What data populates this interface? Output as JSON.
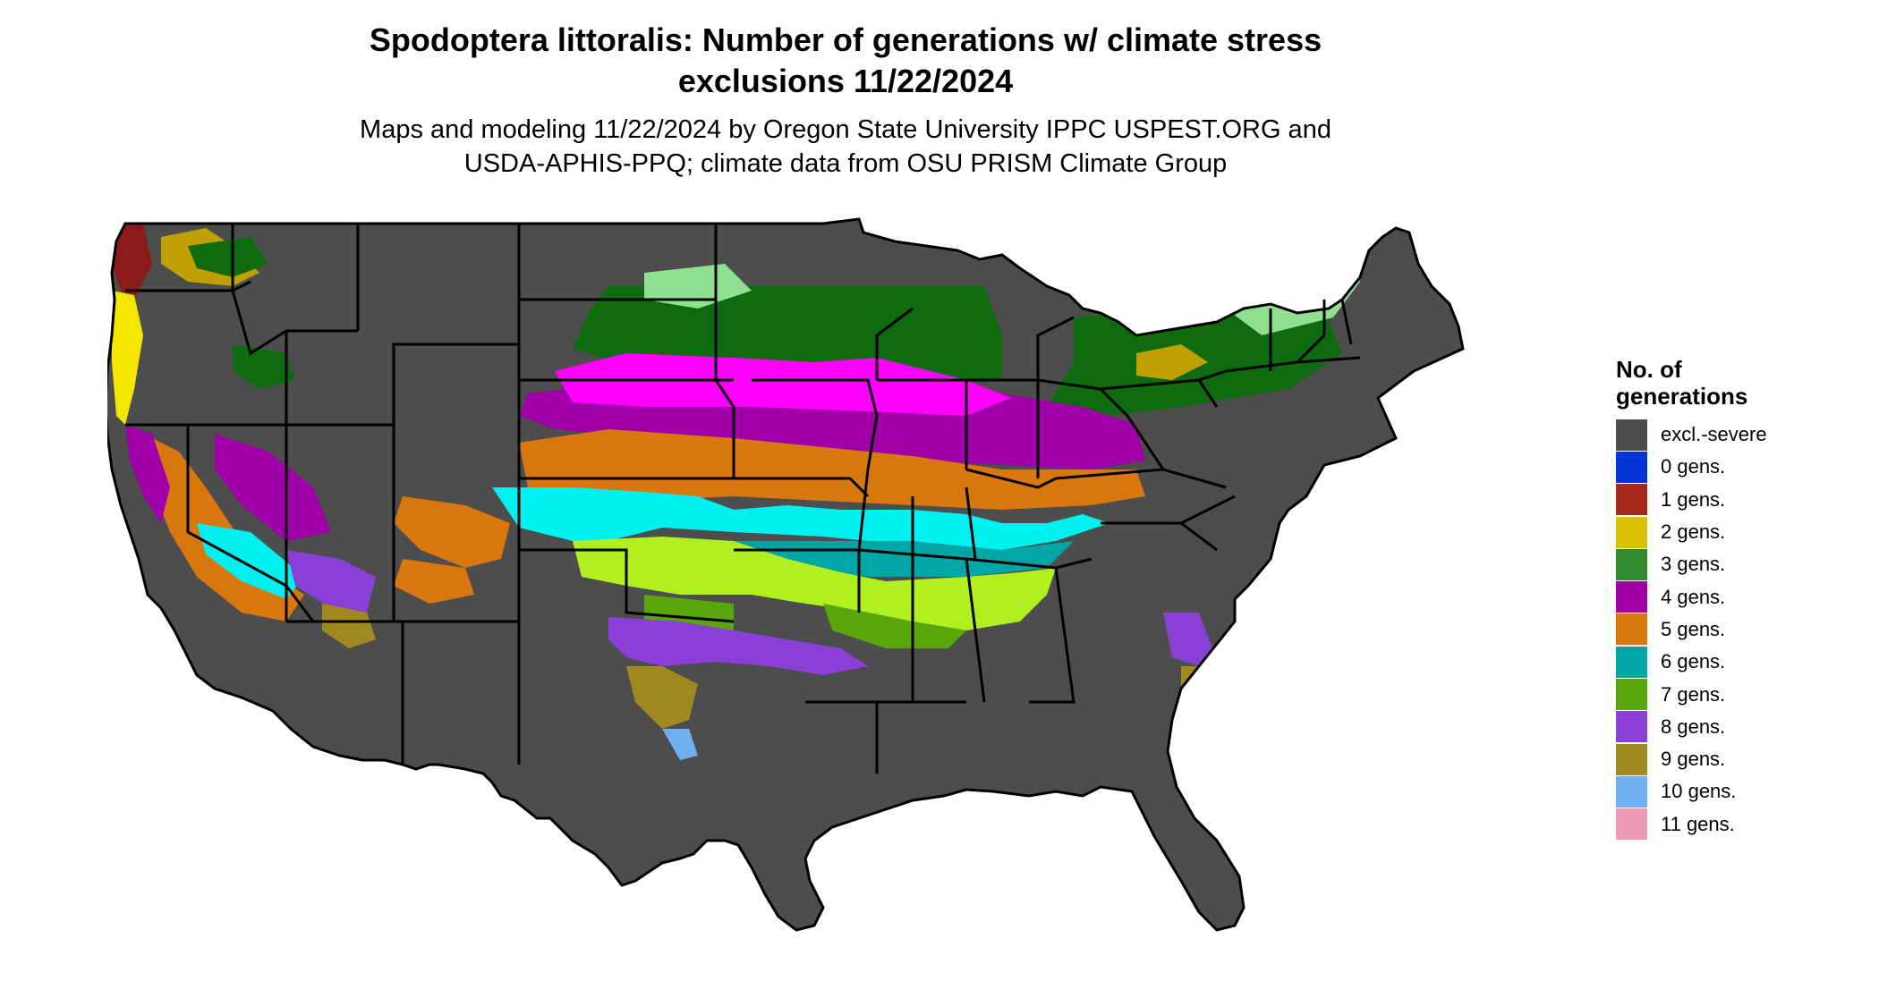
{
  "title": {
    "line1": "Spodoptera littoralis: Number of generations w/ climate stress",
    "line2": "exclusions 11/22/2024"
  },
  "subtitle": {
    "line1": "Maps and modeling 11/22/2024 by Oregon State University IPPC USPEST.ORG and",
    "line2": "USDA-APHIS-PPQ; climate data from OSU PRISM Climate Group"
  },
  "legend": {
    "title_line1": "No. of",
    "title_line2": "generations",
    "items": [
      {
        "label": "excl.-severe",
        "color": "#4d4d4d"
      },
      {
        "label": "0 gens.",
        "color": "#0433d8"
      },
      {
        "label": "1 gens.",
        "color": "#a52a1a"
      },
      {
        "label": "2 gens.",
        "color": "#d9c000"
      },
      {
        "label": "3 gens.",
        "color": "#2e8b2e"
      },
      {
        "label": "4 gens.",
        "color": "#a000a8"
      },
      {
        "label": "5 gens.",
        "color": "#d9770f"
      },
      {
        "label": "6 gens.",
        "color": "#00a5a5"
      },
      {
        "label": "7 gens.",
        "color": "#5aa50a"
      },
      {
        "label": "8 gens.",
        "color": "#8a3fd6"
      },
      {
        "label": "9 gens.",
        "color": "#a08a20"
      },
      {
        "label": "10 gens.",
        "color": "#6fb0f0"
      },
      {
        "label": "11 gens.",
        "color": "#f09ab8"
      }
    ]
  },
  "map_colors": {
    "excluded": "#4d4d4d",
    "excluded_dark_green": "#0f6b0f",
    "light_green": "#8fe08f",
    "magenta": "#ff00ff",
    "lime": "#b0f020",
    "cyan": "#00f0f0",
    "dark_red": "#8b1a1a",
    "yellow": "#f5e600",
    "olive": "#c0a000"
  }
}
